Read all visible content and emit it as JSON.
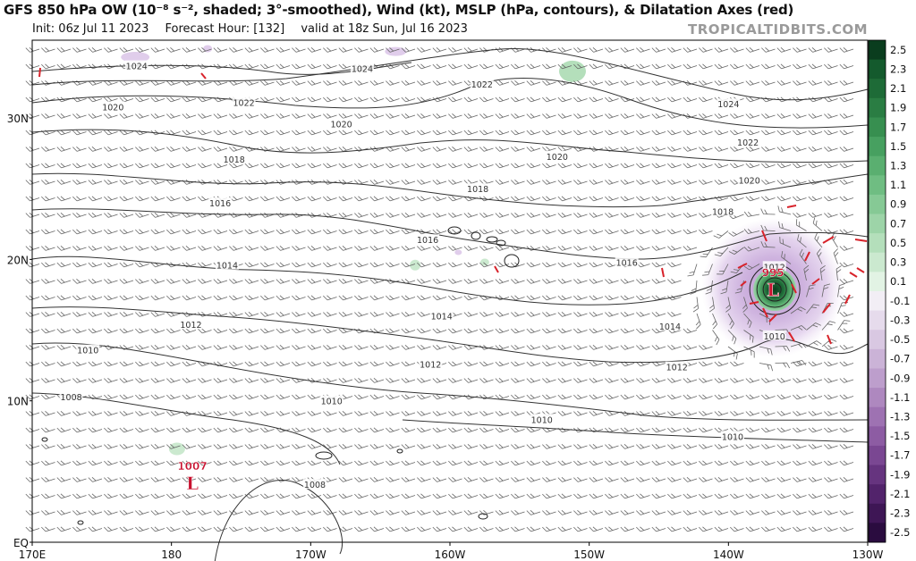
{
  "header": {
    "title": "GFS 850 hPa OW (10⁻⁸ s⁻², shaded; 3°-smoothed), Wind (kt), MSLP (hPa, contours), & Dilatation Axes (red)",
    "init": "Init: 06z Jul 11 2023",
    "forecast_hour": "Forecast Hour: [132]",
    "valid": "valid at 18z Sun, Jul 16 2023",
    "brand": "TROPICALTIDBITS.COM"
  },
  "axes": {
    "lat_labels": [
      "30N",
      "20N",
      "10N",
      "EQ"
    ],
    "lat_values": [
      30,
      20,
      10,
      0
    ],
    "lon_labels": [
      "170E",
      "180",
      "170W",
      "160W",
      "150W",
      "140W",
      "130W"
    ],
    "lon_values": [
      170,
      180,
      190,
      200,
      210,
      220,
      230
    ],
    "lon_range": [
      170,
      230
    ],
    "lat_range": [
      0,
      35.5
    ]
  },
  "colorbar": {
    "labels": [
      "2.5",
      "2.3",
      "2.1",
      "1.9",
      "1.7",
      "1.5",
      "1.3",
      "1.1",
      "0.9",
      "0.7",
      "0.5",
      "0.3",
      "0.1",
      "-0.1",
      "-0.3",
      "-0.5",
      "-0.7",
      "-0.9",
      "-1.1",
      "-1.3",
      "-1.5",
      "-1.7",
      "-1.9",
      "-2.1",
      "-2.3",
      "-2.5"
    ],
    "colors": [
      "#0a3d1e",
      "#145a2d",
      "#1e6b37",
      "#2a7d43",
      "#378f50",
      "#47a060",
      "#5aaf70",
      "#6fbd82",
      "#86c995",
      "#9dd4a8",
      "#b4dfbb",
      "#cbe9cf",
      "#e2f3e4",
      "#f2eef5",
      "#e6dbec",
      "#d9c8e2",
      "#cbb3d7",
      "#bd9ecc",
      "#ae88bf",
      "#9e72b2",
      "#8d5ca3",
      "#7a4792",
      "#66347f",
      "#52236b",
      "#3e1655",
      "#2a0c3f"
    ]
  },
  "pressure_lows": [
    {
      "label": "1007",
      "symbol": "L",
      "lon": 181.5,
      "lat": 4.6
    },
    {
      "label": "995",
      "symbol": "L",
      "lon": 223.2,
      "lat": 18.3
    }
  ],
  "isobar_labels": [
    {
      "text": "1024",
      "lon": 177.5,
      "lat": 33.7
    },
    {
      "text": "1024",
      "lon": 193.7,
      "lat": 33.5
    },
    {
      "text": "1020",
      "lon": 175.8,
      "lat": 30.8
    },
    {
      "text": "1022",
      "lon": 185.2,
      "lat": 31.1
    },
    {
      "text": "1020",
      "lon": 192.2,
      "lat": 29.6
    },
    {
      "text": "1022",
      "lon": 202.3,
      "lat": 32.4
    },
    {
      "text": "1024",
      "lon": 220.0,
      "lat": 31.0
    },
    {
      "text": "1022",
      "lon": 221.4,
      "lat": 28.3
    },
    {
      "text": "1020",
      "lon": 221.5,
      "lat": 25.6
    },
    {
      "text": "1018",
      "lon": 184.5,
      "lat": 27.1
    },
    {
      "text": "1020",
      "lon": 207.7,
      "lat": 27.3
    },
    {
      "text": "1018",
      "lon": 202.0,
      "lat": 25.0
    },
    {
      "text": "1018",
      "lon": 219.6,
      "lat": 23.4
    },
    {
      "text": "1016",
      "lon": 183.5,
      "lat": 24.0
    },
    {
      "text": "1016",
      "lon": 198.4,
      "lat": 21.4
    },
    {
      "text": "1016",
      "lon": 212.7,
      "lat": 19.8
    },
    {
      "text": "1014",
      "lon": 184.0,
      "lat": 19.6
    },
    {
      "text": "1014",
      "lon": 199.4,
      "lat": 16.0
    },
    {
      "text": "1014",
      "lon": 215.8,
      "lat": 15.3
    },
    {
      "text": "1012",
      "lon": 181.4,
      "lat": 15.4
    },
    {
      "text": "1012",
      "lon": 223.3,
      "lat": 19.5
    },
    {
      "text": "1010",
      "lon": 174.0,
      "lat": 13.6
    },
    {
      "text": "1012",
      "lon": 198.6,
      "lat": 12.6
    },
    {
      "text": "1012",
      "lon": 216.3,
      "lat": 12.4
    },
    {
      "text": "1010",
      "lon": 223.3,
      "lat": 14.6
    },
    {
      "text": "1008",
      "lon": 172.8,
      "lat": 10.3
    },
    {
      "text": "1010",
      "lon": 191.5,
      "lat": 10.0
    },
    {
      "text": "1010",
      "lon": 206.6,
      "lat": 8.7
    },
    {
      "text": "1010",
      "lon": 220.3,
      "lat": 7.5
    },
    {
      "text": "1008",
      "lon": 190.3,
      "lat": 4.1
    }
  ]
}
